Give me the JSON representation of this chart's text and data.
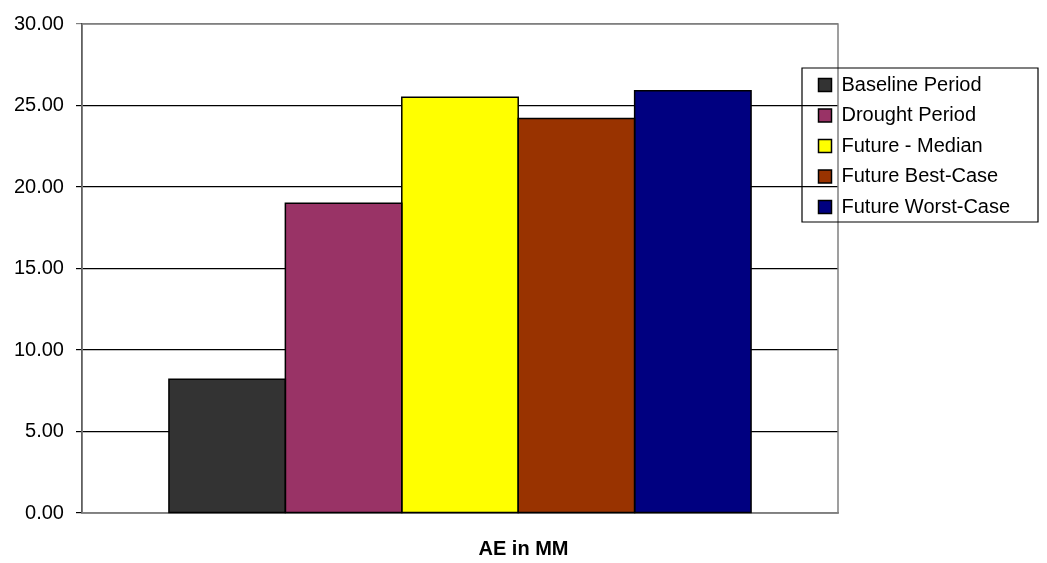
{
  "chart_data": {
    "type": "bar",
    "xlabel": "AE in MM",
    "categories": [
      null
    ],
    "series": [
      {
        "name": "Baseline Period",
        "color": "#333333",
        "values": [
          8.2
        ]
      },
      {
        "name": "Drought Period",
        "color": "#993366",
        "values": [
          19.0
        ]
      },
      {
        "name": "Future - Median",
        "color": "#ffff00",
        "values": [
          25.5
        ]
      },
      {
        "name": "Future Best-Case",
        "color": "#993300",
        "values": [
          24.2
        ]
      },
      {
        "name": "Future Worst-Case",
        "color": "#000080",
        "values": [
          25.9
        ]
      }
    ],
    "ylim": [
      0,
      30
    ],
    "yticks": [
      {
        "value": 0,
        "label": "0.00"
      },
      {
        "value": 5,
        "label": "5.00"
      },
      {
        "value": 10,
        "label": "10.00"
      },
      {
        "value": 15,
        "label": "15.00"
      },
      {
        "value": 20,
        "label": "20.00"
      },
      {
        "value": 25,
        "label": "25.00"
      },
      {
        "value": 30,
        "label": "30.00"
      }
    ],
    "grid": "y",
    "legend": "right"
  }
}
